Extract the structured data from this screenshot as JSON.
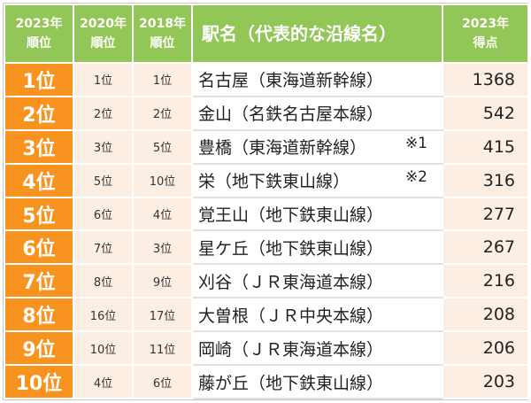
{
  "table": {
    "header": [
      [
        "2023年",
        "順位"
      ],
      [
        "2020年",
        "順位"
      ],
      [
        "2018年",
        "順位"
      ],
      [
        "駅名（代表的な沿線名）"
      ],
      [
        "2023年",
        "得点"
      ]
    ],
    "rows": [
      {
        "rank": "1位",
        "r2020": "1位",
        "r2018": "1位",
        "station": "名古屋（東海道新幹線）",
        "score": 1368
      },
      {
        "rank": "2位",
        "r2020": "2位",
        "r2018": "2位",
        "station": "金山（名鉄名古屋本線）",
        "score": 542
      },
      {
        "rank": "3位",
        "r2020": "3位",
        "r2018": "5位",
        "station": "豊橋（東海道新幹線）",
        "note": "※1",
        "score": 415
      },
      {
        "rank": "4位",
        "r2020": "5位",
        "r2018": "10位",
        "station": "栄（地下鉄東山線）",
        "note": "※2",
        "score": 316
      },
      {
        "rank": "5位",
        "r2020": "6位",
        "r2018": "4位",
        "station": "覚王山（地下鉄東山線）",
        "score": 277
      },
      {
        "rank": "6位",
        "r2020": "7位",
        "r2018": "3位",
        "station": "星ケ丘（地下鉄東山線）",
        "score": 267
      },
      {
        "rank": "7位",
        "r2020": "8位",
        "r2018": "9位",
        "station": "刈谷（ＪＲ東海道本線）",
        "score": 216
      },
      {
        "rank": "8位",
        "r2020": "16位",
        "r2018": "17位",
        "station": "大曽根（ＪＲ中央本線）",
        "score": 208
      },
      {
        "rank": "9位",
        "r2020": "10位",
        "r2018": "11位",
        "station": "岡崎（ＪＲ東海道本線）",
        "score": 206
      },
      {
        "rank": "10位",
        "r2020": "4位",
        "r2018": "6位",
        "station": "藤が丘（地下鉄東山線）",
        "score": 203
      }
    ]
  }
}
